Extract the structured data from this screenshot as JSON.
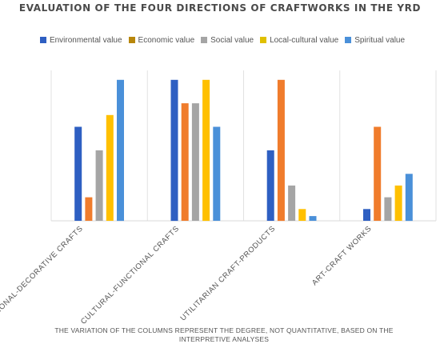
{
  "chart_data": {
    "type": "bar",
    "title": "EVALUATION OF THE FOUR DIRECTIONS OF CRAFTWORKS IN THE YRD",
    "categories": [
      "TRADITIONAL-DECORATIVE CRAFTS",
      "CULTURAL-FUNCTIONAL CRAFTS",
      "UTILITARIAN CRAFT-PRODUCTS",
      "ART-CRAFT WORKS"
    ],
    "series": [
      {
        "name": "Environmental value",
        "color": "#2e5fc2",
        "values": [
          4,
          6,
          3,
          0.5
        ]
      },
      {
        "name": "Economic value",
        "color": "#f07c2c",
        "values": [
          1,
          5,
          6,
          4
        ]
      },
      {
        "name": "Social value",
        "color": "#a5a5a5",
        "values": [
          3,
          5,
          1.5,
          1
        ]
      },
      {
        "name": "Local-cultural value",
        "color": "#ffc000",
        "values": [
          4.5,
          6,
          0.5,
          1.5
        ]
      },
      {
        "name": "Spiritual value",
        "color": "#4a90d9",
        "values": [
          6,
          4,
          0.2,
          2
        ]
      }
    ],
    "legend_colors": [
      "#2e5fc2",
      "#b8860b",
      "#a5a5a5",
      "#e0c000",
      "#4a90d9"
    ],
    "ylim": [
      0,
      6.4
    ],
    "grid": false,
    "legend_position": "top",
    "note": "THE VARIATION OF THE COLUMNS REPRESENT THE DEGREE, NOT QUANTITATIVE, BASED ON THE INTERPRETIVE ANALYSES"
  }
}
